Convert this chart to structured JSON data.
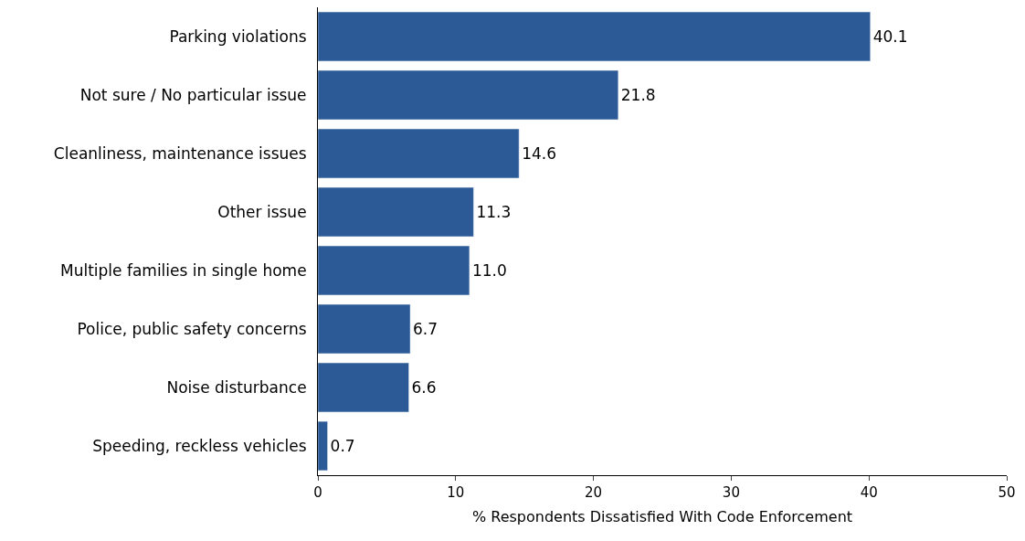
{
  "chart_data": {
    "type": "bar",
    "orientation": "horizontal",
    "xlabel": "% Respondents Dissatisfied With Code Enforcement",
    "categories": [
      "Parking violations",
      "Not sure / No particular issue",
      "Cleanliness, maintenance issues",
      "Other issue",
      "Multiple families in single home",
      "Police, public safety concerns",
      "Noise disturbance",
      "Speeding, reckless vehicles"
    ],
    "values": [
      40.1,
      21.8,
      14.6,
      11.3,
      11.0,
      6.7,
      6.6,
      0.7
    ],
    "color": "#2c5a96",
    "xlim": [
      0,
      50
    ],
    "xticks": [
      0,
      10,
      20,
      30,
      40,
      50
    ],
    "value_labels": [
      "40.1",
      "21.8",
      "14.6",
      "11.3",
      "11.0",
      "6.7",
      "6.6",
      "0.7"
    ],
    "grid": false,
    "legend": false
  }
}
